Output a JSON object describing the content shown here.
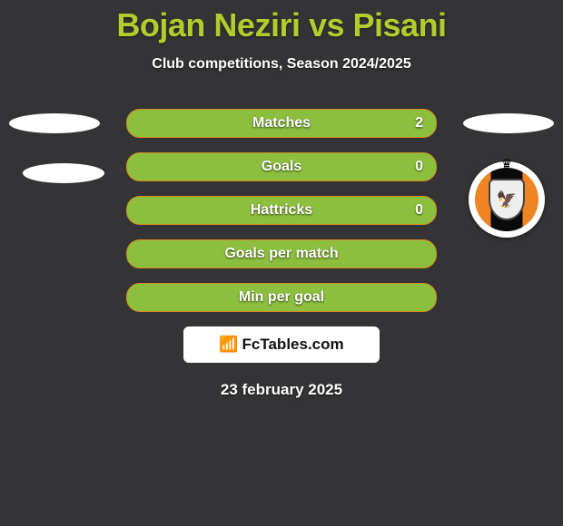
{
  "title_color": "#b2cc2e",
  "accent_color": "#8cbf3f",
  "bg_color": "#343436",
  "header": {
    "title": "Bojan Neziri vs Pisani",
    "subtitle": "Club competitions, Season 2024/2025"
  },
  "rows": [
    {
      "label": "Matches",
      "value": "2",
      "show_value": true
    },
    {
      "label": "Goals",
      "value": "0",
      "show_value": true
    },
    {
      "label": "Hattricks",
      "value": "0",
      "show_value": true
    },
    {
      "label": "Goals per match",
      "value": "",
      "show_value": false
    },
    {
      "label": "Min per goal",
      "value": "",
      "show_value": false
    }
  ],
  "bar_style": {
    "bg": "#8dbf3f",
    "outline": "#d58b1e",
    "text": "#ffffff",
    "label_fontsize": 16
  },
  "watermark": {
    "icon": "📶",
    "text": "FcTables.com"
  },
  "date": "23 february 2025",
  "right_logo": {
    "crown": "♛",
    "eagle": "🦅"
  }
}
